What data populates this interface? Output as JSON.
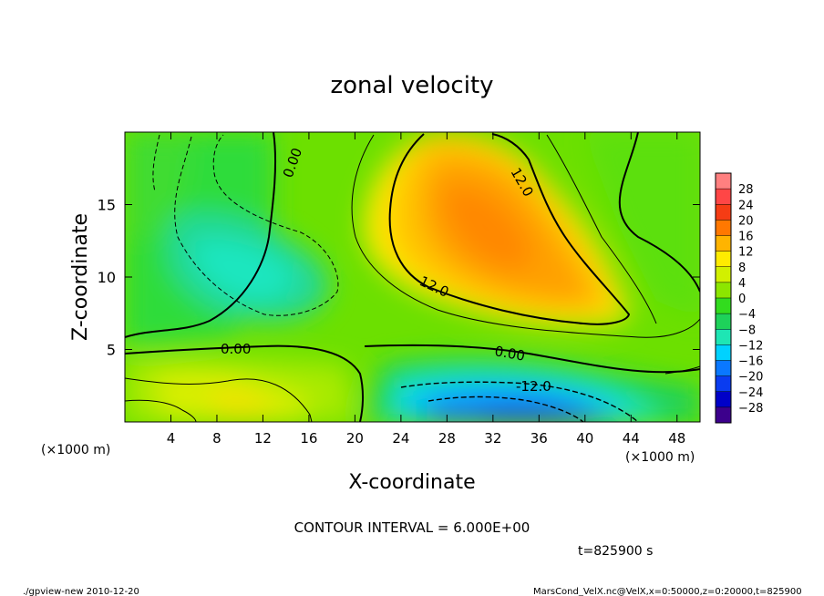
{
  "chart_data": {
    "type": "heatmap",
    "title": "zonal velocity",
    "xlabel": "X-coordinate",
    "ylabel": "Z-coordinate",
    "x_unit_left": "(×1000 m)",
    "x_unit_right": "(×1000 m)",
    "xlim": [
      0,
      50
    ],
    "ylim": [
      0,
      20
    ],
    "x_ticks": [
      4,
      8,
      12,
      16,
      20,
      24,
      28,
      32,
      36,
      40,
      44,
      48
    ],
    "y_ticks": [
      5,
      10,
      15
    ],
    "colorbar": {
      "labels": [
        "28",
        "24",
        "20",
        "16",
        "12",
        "8",
        "4",
        "0",
        "−4",
        "−8",
        "−12",
        "−16",
        "−20",
        "−24",
        "−28"
      ],
      "colors": [
        "#ff8080",
        "#ff4646",
        "#f53c14",
        "#ff7800",
        "#ffb400",
        "#ffeb00",
        "#d2f000",
        "#8ce600",
        "#32dc1e",
        "#1ed25a",
        "#1ee6b4",
        "#00d2ff",
        "#0a78ff",
        "#0a3cf0",
        "#0000c8",
        "#3c008c"
      ]
    },
    "contour_labels": [
      "0.00",
      "12.0",
      "12.0",
      "0.00",
      "0.00",
      "-12.0"
    ],
    "contour_interval_text": "CONTOUR INTERVAL = 6.000E+00",
    "time_text": "t=825900  s"
  },
  "footer": {
    "left": "./gpview-new  2010-12-20",
    "right": "MarsCond_VelX.nc@VelX,x=0:50000,z=0:20000,t=825900"
  }
}
